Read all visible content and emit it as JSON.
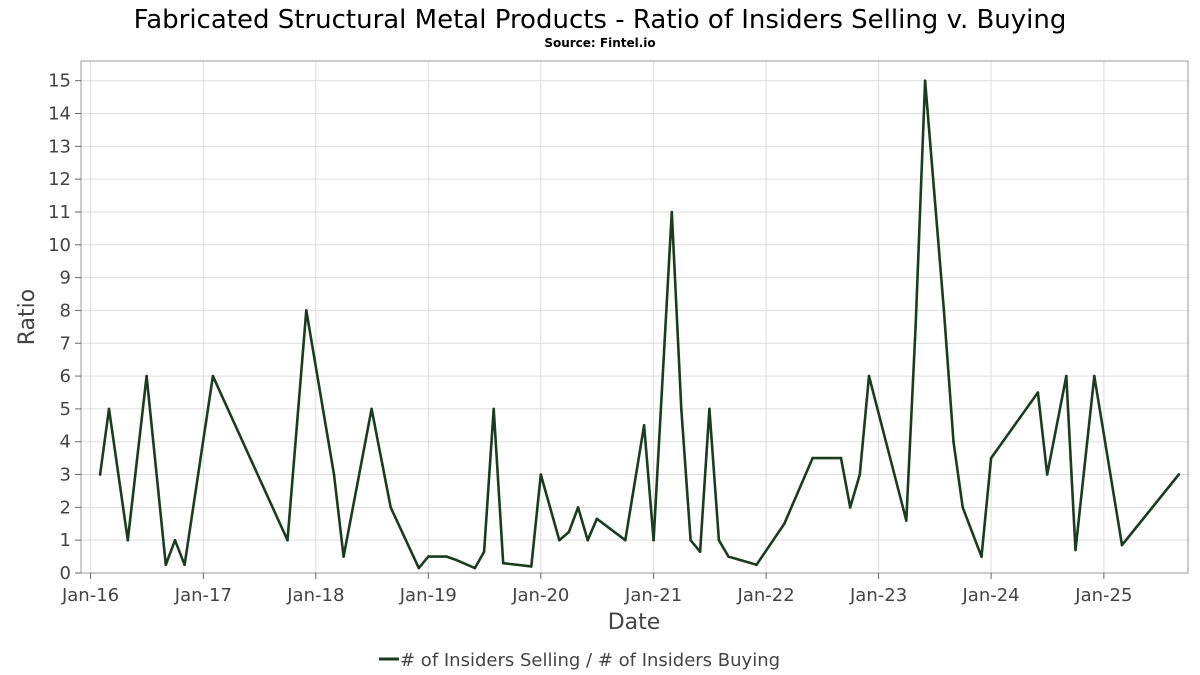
{
  "chart_data": {
    "type": "line",
    "title": "Fabricated Structural Metal Products - Ratio of Insiders Selling v. Buying",
    "subtitle": "Source: Fintel.io",
    "xlabel": "Date",
    "ylabel": "Ratio",
    "ylim": [
      0,
      15.6
    ],
    "x_range": [
      "2015-12-01",
      "2025-10-01"
    ],
    "y_ticks": [
      0,
      1,
      2,
      3,
      4,
      5,
      6,
      7,
      8,
      9,
      10,
      11,
      12,
      13,
      14,
      15
    ],
    "x_ticks": [
      {
        "label": "Jan-16",
        "date": "2016-01-01"
      },
      {
        "label": "Jan-17",
        "date": "2017-01-01"
      },
      {
        "label": "Jan-18",
        "date": "2018-01-01"
      },
      {
        "label": "Jan-19",
        "date": "2019-01-01"
      },
      {
        "label": "Jan-20",
        "date": "2020-01-01"
      },
      {
        "label": "Jan-21",
        "date": "2021-01-01"
      },
      {
        "label": "Jan-22",
        "date": "2022-01-01"
      },
      {
        "label": "Jan-23",
        "date": "2023-01-01"
      },
      {
        "label": "Jan-24",
        "date": "2024-01-01"
      },
      {
        "label": "Jan-25",
        "date": "2025-01-01"
      }
    ],
    "grid": true,
    "legend_position": "bottom-center",
    "series": [
      {
        "name": "# of Insiders Selling / # of Insiders Buying",
        "color": "#1a3d1f",
        "points": [
          [
            "2016-02-01",
            3
          ],
          [
            "2016-03-01",
            5
          ],
          [
            "2016-05-01",
            1
          ],
          [
            "2016-07-01",
            6
          ],
          [
            "2016-09-01",
            0.25
          ],
          [
            "2016-10-01",
            1
          ],
          [
            "2016-11-01",
            0.25
          ],
          [
            "2017-02-01",
            6
          ],
          [
            "2017-10-01",
            1
          ],
          [
            "2017-12-01",
            8
          ],
          [
            "2018-03-01",
            3
          ],
          [
            "2018-04-01",
            0.5
          ],
          [
            "2018-07-01",
            5
          ],
          [
            "2018-09-01",
            2
          ],
          [
            "2018-12-01",
            0.15
          ],
          [
            "2019-01-01",
            0.5
          ],
          [
            "2019-03-01",
            0.5
          ],
          [
            "2019-04-01",
            0.4
          ],
          [
            "2019-06-01",
            0.15
          ],
          [
            "2019-07-01",
            0.65
          ],
          [
            "2019-08-01",
            5
          ],
          [
            "2019-09-01",
            0.3
          ],
          [
            "2019-12-01",
            0.2
          ],
          [
            "2020-01-01",
            3
          ],
          [
            "2020-03-01",
            1
          ],
          [
            "2020-04-01",
            1.25
          ],
          [
            "2020-05-01",
            2
          ],
          [
            "2020-06-01",
            1
          ],
          [
            "2020-07-01",
            1.65
          ],
          [
            "2020-10-01",
            1
          ],
          [
            "2020-12-01",
            4.5
          ],
          [
            "2021-01-01",
            1
          ],
          [
            "2021-03-01",
            11
          ],
          [
            "2021-04-01",
            5
          ],
          [
            "2021-05-01",
            1
          ],
          [
            "2021-06-01",
            0.65
          ],
          [
            "2021-07-01",
            5
          ],
          [
            "2021-08-01",
            1
          ],
          [
            "2021-09-01",
            0.5
          ],
          [
            "2021-12-01",
            0.25
          ],
          [
            "2022-03-01",
            1.5
          ],
          [
            "2022-06-01",
            3.5
          ],
          [
            "2022-09-01",
            3.5
          ],
          [
            "2022-10-01",
            2
          ],
          [
            "2022-11-01",
            3
          ],
          [
            "2022-12-01",
            6
          ],
          [
            "2023-04-01",
            1.6
          ],
          [
            "2023-05-01",
            7.5
          ],
          [
            "2023-06-01",
            15
          ],
          [
            "2023-08-01",
            8
          ],
          [
            "2023-09-01",
            4
          ],
          [
            "2023-10-01",
            2
          ],
          [
            "2023-12-01",
            0.5
          ],
          [
            "2024-01-01",
            3.5
          ],
          [
            "2024-06-01",
            5.5
          ],
          [
            "2024-07-01",
            3
          ],
          [
            "2024-09-01",
            6
          ],
          [
            "2024-10-01",
            0.7
          ],
          [
            "2024-12-01",
            6
          ],
          [
            "2025-03-01",
            0.85
          ],
          [
            "2025-09-01",
            3
          ]
        ]
      }
    ]
  }
}
